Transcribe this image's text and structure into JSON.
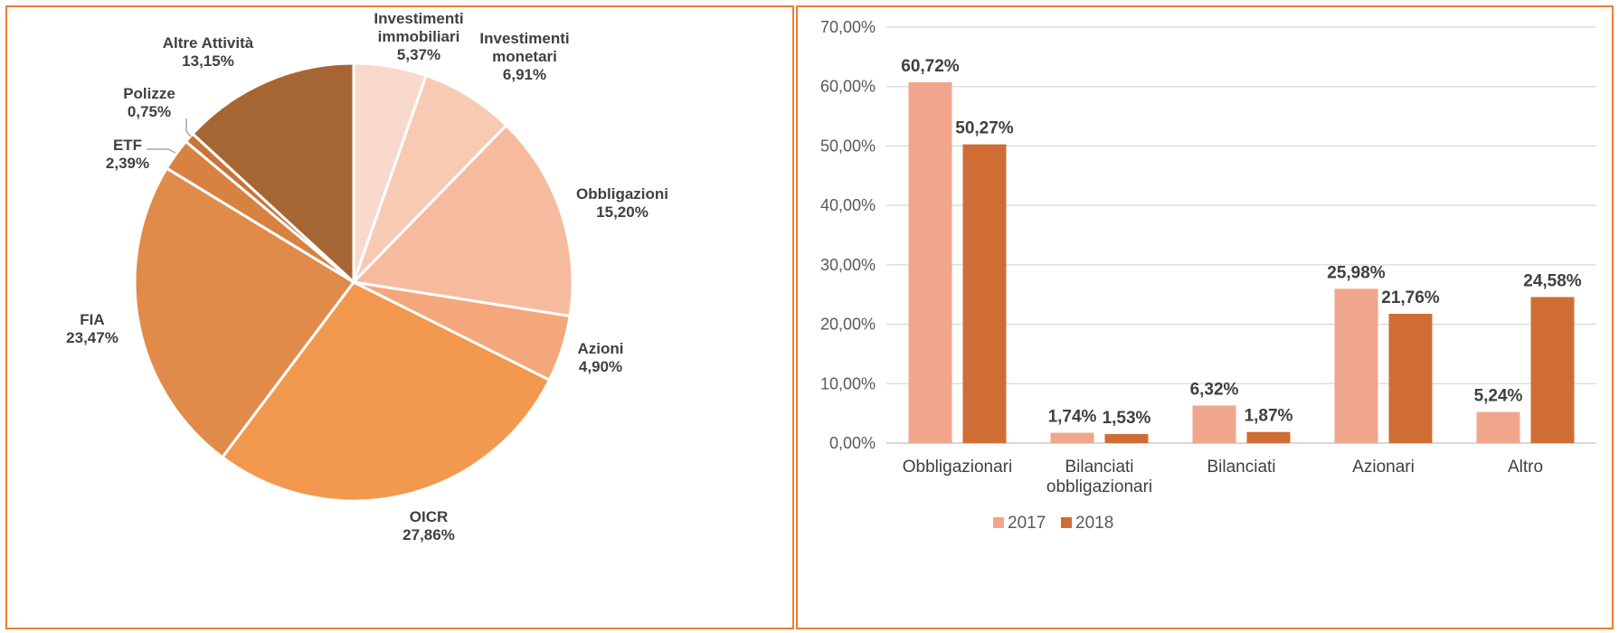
{
  "chart_data": [
    {
      "type": "pie",
      "slices": [
        {
          "label_lines": [
            "Investimenti",
            "immobiliari"
          ],
          "value": 5.37,
          "value_label": "5,37%",
          "color": "#F9D9CB"
        },
        {
          "label_lines": [
            "Investimenti",
            "monetari"
          ],
          "value": 6.91,
          "value_label": "6,91%",
          "color": "#F8CAB3"
        },
        {
          "label_lines": [
            "Obbligazioni"
          ],
          "value": 15.2,
          "value_label": "15,20%",
          "color": "#F6BB9E"
        },
        {
          "label_lines": [
            "Azioni"
          ],
          "value": 4.9,
          "value_label": "4,90%",
          "color": "#F4A77A"
        },
        {
          "label_lines": [
            "OICR"
          ],
          "value": 27.86,
          "value_label": "27,86%",
          "color": "#F2984F"
        },
        {
          "label_lines": [
            "FIA"
          ],
          "value": 23.47,
          "value_label": "23,47%",
          "color": "#E18B4A"
        },
        {
          "label_lines": [
            "ETF"
          ],
          "value": 2.39,
          "value_label": "2,39%",
          "color": "#D88242"
        },
        {
          "label_lines": [
            "Polizze"
          ],
          "value": 0.75,
          "value_label": "0,75%",
          "color": "#C97438"
        },
        {
          "label_lines": [
            "Altre Attività"
          ],
          "value": 13.15,
          "value_label": "13,15%",
          "color": "#A66633"
        }
      ]
    },
    {
      "type": "bar",
      "categories": [
        [
          "Obbligazionari"
        ],
        [
          "Bilanciati",
          "obbligazionari"
        ],
        [
          "Bilanciati"
        ],
        [
          "Azionari"
        ],
        [
          "Altro"
        ]
      ],
      "series": [
        {
          "name": "2017",
          "color": "#F0A68C",
          "values": [
            60.72,
            1.74,
            6.32,
            25.98,
            5.24
          ],
          "labels": [
            "60,72%",
            "1,74%",
            "6,32%",
            "25,98%",
            "5,24%"
          ]
        },
        {
          "name": "2018",
          "color": "#D06D35",
          "values": [
            50.27,
            1.53,
            1.87,
            21.76,
            24.58
          ],
          "labels": [
            "50,27%",
            "1,53%",
            "1,87%",
            "21,76%",
            "24,58%"
          ]
        }
      ],
      "ylim": [
        0,
        70
      ],
      "yticks": [
        0,
        10,
        20,
        30,
        40,
        50,
        60,
        70
      ],
      "ytick_labels": [
        "0,00%",
        "10,00%",
        "20,00%",
        "30,00%",
        "40,00%",
        "50,00%",
        "60,00%",
        "70,00%"
      ],
      "grid": true,
      "legend_position": "bottom"
    }
  ]
}
